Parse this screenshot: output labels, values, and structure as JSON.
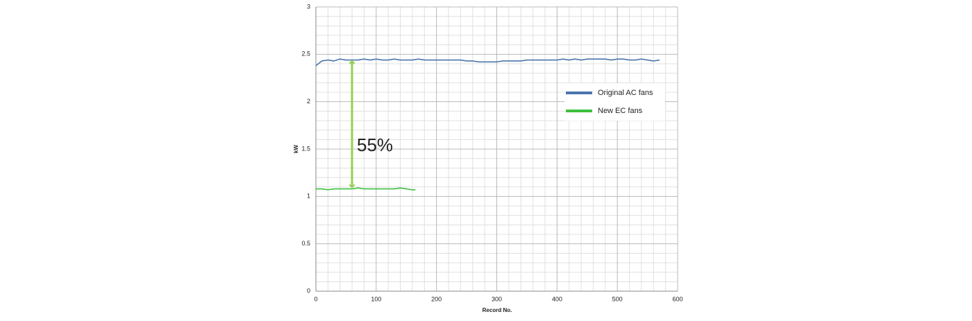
{
  "chart_data": {
    "type": "line",
    "x_label": "Record No.",
    "y_label": "kW",
    "annotation": "55%",
    "xlim": [
      0,
      600
    ],
    "xticks": [
      0,
      100,
      200,
      300,
      400,
      500,
      600
    ],
    "ylim": [
      0,
      3
    ],
    "yticks": [
      0,
      0.5,
      1,
      1.5,
      2,
      2.5,
      3
    ],
    "grid": true,
    "minor_grid": true,
    "legend": "center right",
    "series": [
      {
        "name": "Original AC fans",
        "color": "#4a74ad",
        "x": [
          0,
          10,
          20,
          30,
          40,
          50,
          60,
          70,
          80,
          90,
          100,
          110,
          120,
          130,
          140,
          150,
          160,
          170,
          180,
          190,
          200,
          210,
          220,
          230,
          240,
          250,
          260,
          270,
          280,
          290,
          300,
          310,
          320,
          330,
          340,
          350,
          360,
          370,
          380,
          390,
          400,
          410,
          420,
          430,
          440,
          450,
          460,
          470,
          480,
          490,
          500,
          510,
          520,
          530,
          540,
          550,
          560,
          570
        ],
        "values": [
          2.38,
          2.43,
          2.44,
          2.43,
          2.45,
          2.44,
          2.44,
          2.44,
          2.45,
          2.44,
          2.45,
          2.44,
          2.44,
          2.45,
          2.44,
          2.44,
          2.44,
          2.45,
          2.44,
          2.44,
          2.44,
          2.44,
          2.44,
          2.44,
          2.44,
          2.43,
          2.43,
          2.42,
          2.42,
          2.42,
          2.42,
          2.43,
          2.43,
          2.43,
          2.43,
          2.44,
          2.44,
          2.44,
          2.44,
          2.44,
          2.44,
          2.45,
          2.44,
          2.45,
          2.44,
          2.45,
          2.45,
          2.45,
          2.45,
          2.44,
          2.45,
          2.45,
          2.44,
          2.44,
          2.45,
          2.44,
          2.43,
          2.44
        ]
      },
      {
        "name": "New EC fans",
        "color": "#3cbf3c",
        "x": [
          0,
          10,
          20,
          30,
          40,
          50,
          60,
          70,
          80,
          90,
          100,
          110,
          120,
          130,
          140,
          150,
          160,
          165
        ],
        "values": [
          1.08,
          1.08,
          1.07,
          1.08,
          1.08,
          1.08,
          1.08,
          1.09,
          1.08,
          1.08,
          1.08,
          1.08,
          1.08,
          1.08,
          1.09,
          1.08,
          1.07,
          1.07
        ]
      }
    ]
  }
}
